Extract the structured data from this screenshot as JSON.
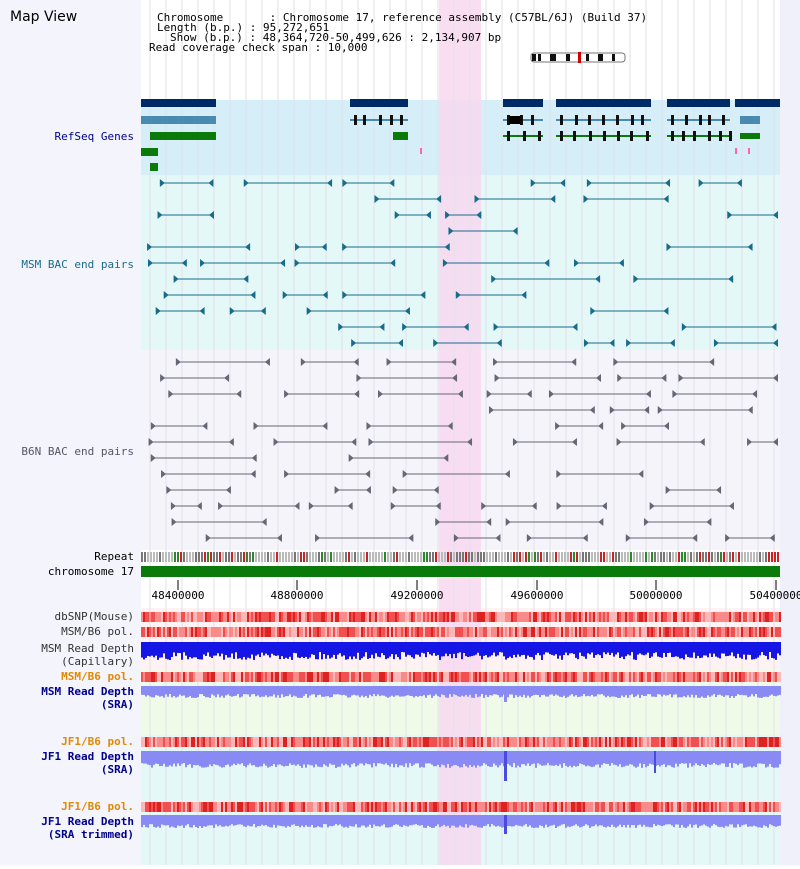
{
  "page": {
    "title": "Map View"
  },
  "header": {
    "chromosome": "Chromosome       : Chromosome 17, reference assembly (C57BL/6J) (Build 37)",
    "length": "Length (b.p.) : 95,272,651",
    "show": "Show (b.p.) : 48,364,720-50,499,626 : 2,134,907 bp",
    "coverage": "Read coverage check span : 10,000"
  },
  "tracks": {
    "refseq": "RefSeq Genes",
    "msm_bac": "MSM BAC end pairs",
    "b6n_bac": "B6N BAC end pairs",
    "repeat": "Repeat",
    "chromosome": "chromosome 17",
    "dbsnp": "dbSNP(Mouse)",
    "msm_b6_pol": "MSM/B6 pol.",
    "msm_depth_cap_1": "MSM Read Depth",
    "msm_depth_cap_2": "(Capillary)",
    "msm_b6_pol_2": "MSM/B6 pol.",
    "msm_depth_sra_1": "MSM Read Depth",
    "msm_depth_sra_2": "(SRA)",
    "jf1_pol_1": "JF1/B6 pol.",
    "jf1_depth_sra_1": "JF1 Read Depth",
    "jf1_depth_sra_2": "(SRA)",
    "jf1_pol_2": "JF1/B6 pol.",
    "jf1_depth_trim_1": "JF1 Read Depth",
    "jf1_depth_trim_2": "(SRA trimmed)"
  },
  "axis": {
    "ticks": [
      "48400000",
      "48800000",
      "49200000",
      "49600000",
      "50000000",
      "50400000"
    ]
  },
  "colors": {
    "refseq_bg": "#d6eef8",
    "bac_bg": "#e4f8f8",
    "highlight": "#f8d8f0",
    "label_navy": "#00008b",
    "label_orange": "#e08a00",
    "label_teal": "#1a6b8a",
    "chromosome_bar": "#0a7a0a",
    "depth_dark": "#1515e6",
    "depth_light": "#8a8af5"
  }
}
